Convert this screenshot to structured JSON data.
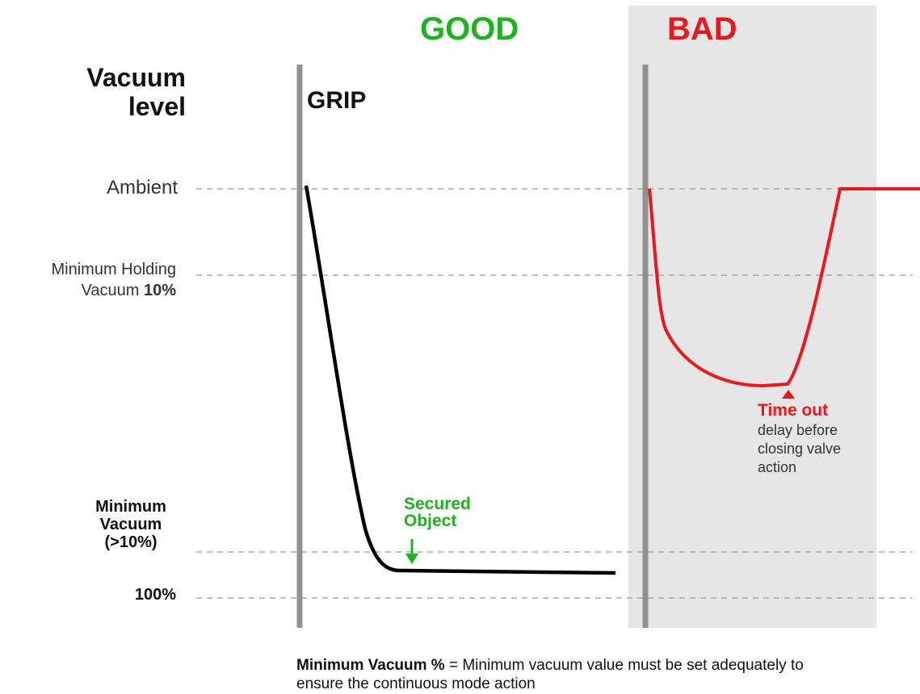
{
  "header": {
    "good": "GOOD",
    "bad": "BAD"
  },
  "y_axis_title": "Vacuum level",
  "grip": "GRIP",
  "levels": {
    "ambient": "Ambient",
    "minimum_holding": {
      "text": "Minimum Holding Vacuum",
      "bold": "10%"
    },
    "minimum_vacuum": "Minimum Vacuum (>10%)",
    "full": "100%"
  },
  "annotations": {
    "secured": "Secured Object",
    "timeout_title": "Time out",
    "timeout_text": "delay before closing valve action"
  },
  "footer": {
    "bold": "Minimum Vacuum %",
    "text": "= Minimum vacuum value must be set adequately to ensure the continuous mode action"
  }
}
